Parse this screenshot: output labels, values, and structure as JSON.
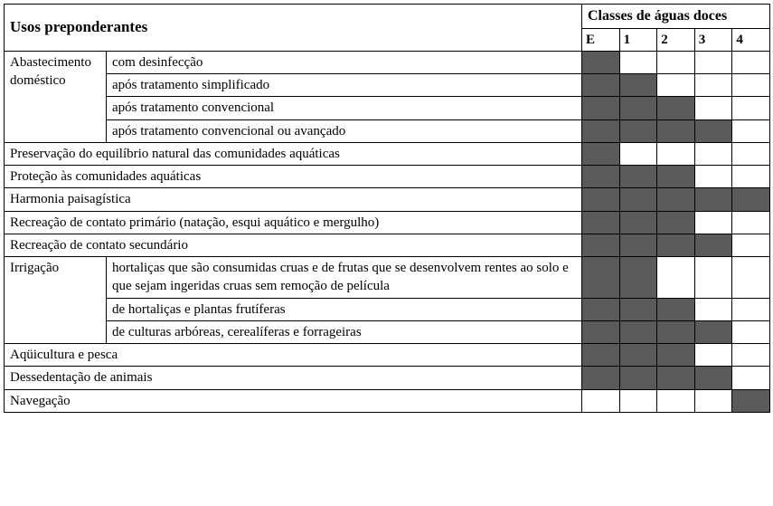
{
  "colors": {
    "filled": "#5a5a5a"
  },
  "header": {
    "main": "Usos preponderantes",
    "group": "Classes de águas doces",
    "cols": [
      "E",
      "1",
      "2",
      "3",
      "4"
    ]
  },
  "rows": [
    {
      "a": "Abastecimento doméstico",
      "a_rowspan": 4,
      "b_colspan": 2,
      "b": "com desinfecção",
      "marks": [
        true,
        false,
        false,
        false,
        false
      ]
    },
    {
      "b_colspan": 2,
      "b": "após tratamento simplificado",
      "marks": [
        true,
        true,
        false,
        false,
        false
      ]
    },
    {
      "b_colspan": 2,
      "b": "após tratamento convencional",
      "marks": [
        true,
        true,
        true,
        false,
        false
      ]
    },
    {
      "b_colspan": 2,
      "b": "após tratamento convencional ou avançado",
      "marks": [
        true,
        true,
        true,
        true,
        false
      ]
    },
    {
      "a_colspan": 3,
      "a": "Preservação do equilíbrio natural das comunidades aquáticas",
      "marks": [
        true,
        false,
        false,
        false,
        false
      ]
    },
    {
      "a_colspan": 3,
      "a": "Proteção às comunidades aquáticas",
      "marks": [
        true,
        true,
        true,
        false,
        false
      ]
    },
    {
      "a_colspan": 3,
      "a": "Harmonia paisagística",
      "marks": [
        true,
        true,
        true,
        true,
        true
      ]
    },
    {
      "a_colspan": 3,
      "a": "Recreação de contato primário (natação, esqui aquático e mergulho)",
      "marks": [
        true,
        true,
        true,
        false,
        false
      ]
    },
    {
      "a_colspan": 3,
      "a": "Recreação de contato secundário",
      "marks": [
        true,
        true,
        true,
        true,
        false
      ]
    },
    {
      "a": "Irrigação",
      "a_rowspan": 3,
      "b_colspan": 2,
      "b": "hortaliças que são consumidas cruas e de frutas que se desenvolvem rentes ao solo e que sejam ingeridas cruas sem remoção de película",
      "marks": [
        true,
        true,
        false,
        false,
        false
      ]
    },
    {
      "b_colspan": 2,
      "b": "de hortaliças e plantas frutíferas",
      "marks": [
        true,
        true,
        true,
        false,
        false
      ]
    },
    {
      "b_colspan": 2,
      "b": "de culturas arbóreas, cerealíferas e forrageiras",
      "marks": [
        true,
        true,
        true,
        true,
        false
      ]
    },
    {
      "a_colspan": 3,
      "a": "Aqüicultura e pesca",
      "marks": [
        true,
        true,
        true,
        false,
        false
      ]
    },
    {
      "a_colspan": 3,
      "a": "Dessedentação de animais",
      "marks": [
        true,
        true,
        true,
        true,
        false
      ]
    },
    {
      "a_colspan": 3,
      "a": "Navegação",
      "marks": [
        false,
        false,
        false,
        false,
        true
      ]
    }
  ]
}
